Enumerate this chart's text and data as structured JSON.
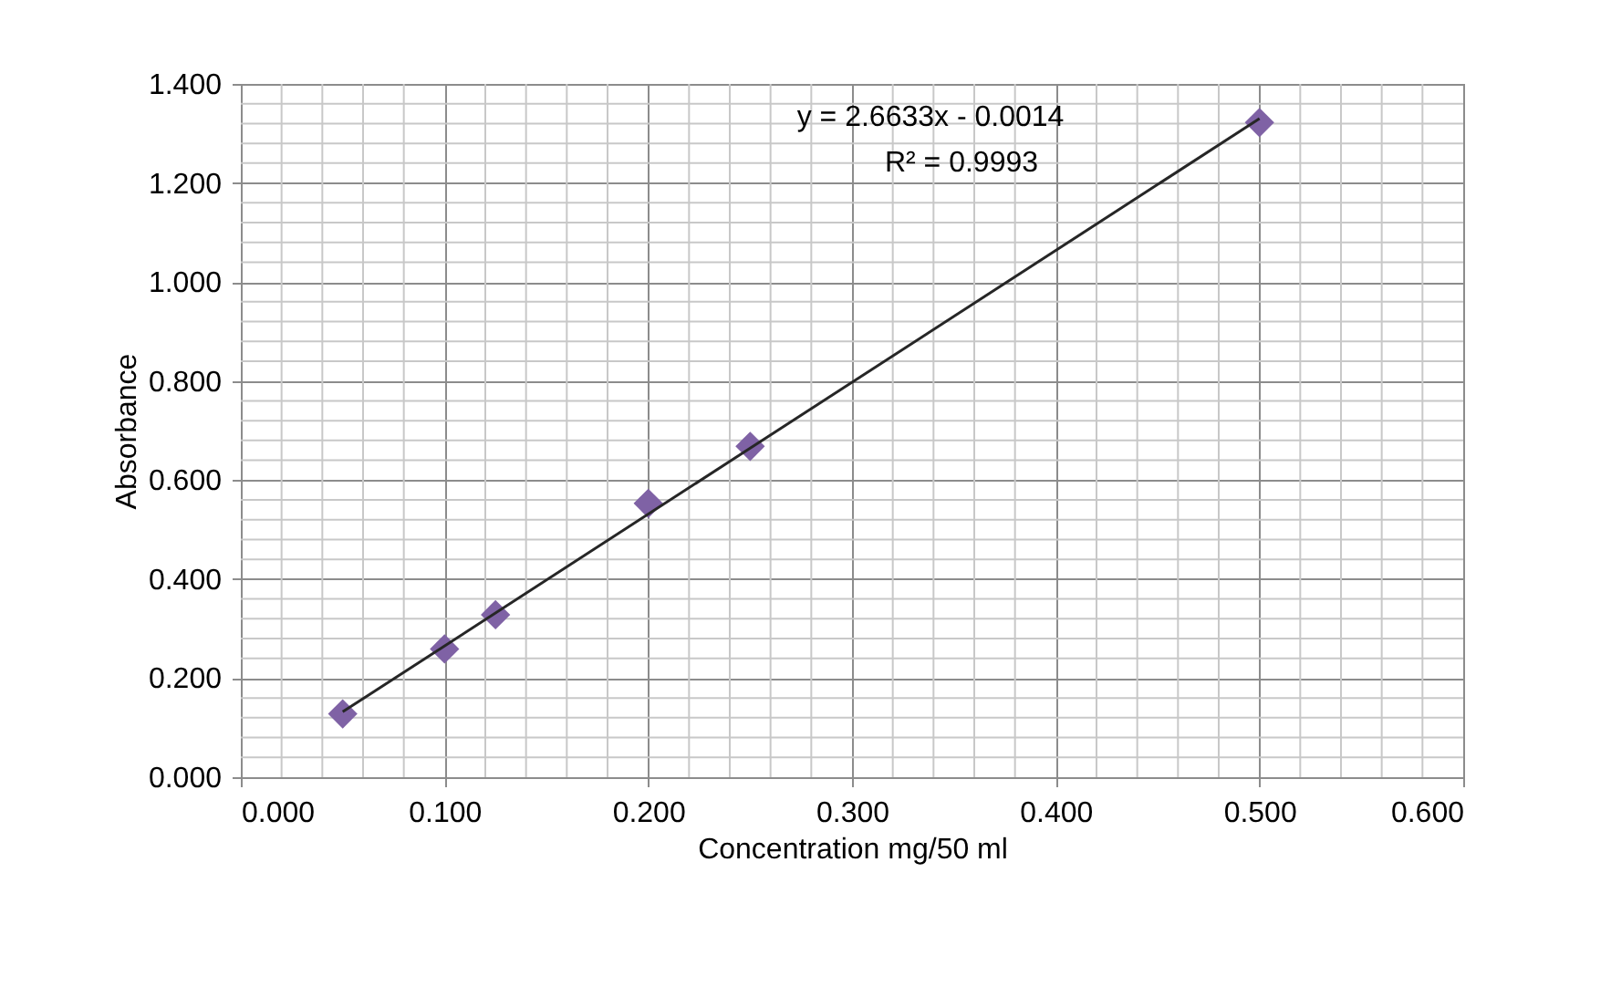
{
  "chart_data": {
    "type": "scatter",
    "xlabel": "Concentration mg/50 ml",
    "ylabel": "Absorbance",
    "x": [
      0.05,
      0.1,
      0.125,
      0.2,
      0.25,
      0.5
    ],
    "series": [
      {
        "type": "scatter",
        "color": "#7f62a5",
        "marker": "diamond",
        "values": [
          0.128,
          0.259,
          0.328,
          0.553,
          0.668,
          1.322
        ]
      },
      {
        "type": "line",
        "color": "#262626",
        "x": [
          0.05,
          0.5
        ],
        "values": [
          0.132,
          1.33
        ],
        "line_style": "solid",
        "marker": "none"
      }
    ],
    "annotations": [
      "y = 2.6633x - 0.0014",
      "R² = 0.9993"
    ],
    "xlim": [
      0,
      0.6
    ],
    "xticks": [
      {
        "value": 0,
        "label": "0.000"
      },
      {
        "value": 0.1,
        "label": "0.100"
      },
      {
        "value": 0.2,
        "label": "0.200"
      },
      {
        "value": 0.3,
        "label": "0.300"
      },
      {
        "value": 0.4,
        "label": "0.400"
      },
      {
        "value": 0.5,
        "label": "0.500"
      },
      {
        "value": 0.6,
        "label": "0.600"
      }
    ],
    "ylim": [
      0,
      1.4
    ],
    "yticks": [
      {
        "value": 0,
        "label": "0.000"
      },
      {
        "value": 0.2,
        "label": "0.200"
      },
      {
        "value": 0.4,
        "label": "0.400"
      },
      {
        "value": 0.6,
        "label": "0.600"
      },
      {
        "value": 0.8,
        "label": "0.800"
      },
      {
        "value": 1.0,
        "label": "1.000"
      },
      {
        "value": 1.2,
        "label": "1.200"
      },
      {
        "value": 1.4,
        "label": "1.400"
      }
    ],
    "grid": true
  }
}
